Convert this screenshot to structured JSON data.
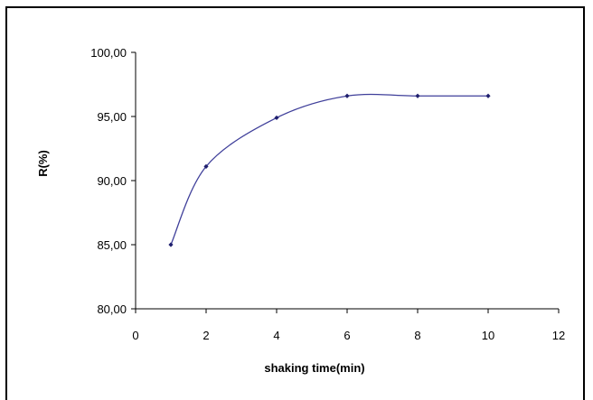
{
  "chart_data": {
    "type": "line",
    "title": "",
    "xlabel": "shaking time(min)",
    "ylabel": "R(%)",
    "xlim": [
      0,
      12
    ],
    "ylim": [
      80,
      100
    ],
    "x_ticks": [
      0,
      2,
      4,
      6,
      8,
      10,
      12
    ],
    "x_tick_labels": [
      "0",
      "2",
      "4",
      "6",
      "8",
      "10",
      "12"
    ],
    "y_ticks": [
      80,
      85,
      90,
      95,
      100
    ],
    "y_tick_labels": [
      "80,00",
      "85,00",
      "90,00",
      "95,00",
      "100,00"
    ],
    "smooth": true,
    "grid": false,
    "legend": "none",
    "series": [
      {
        "color": "#3f3f9a",
        "marker": "diamond",
        "x": [
          1,
          2,
          4,
          6,
          8,
          10
        ],
        "y": [
          85.0,
          91.1,
          94.9,
          96.6,
          96.6,
          96.6
        ]
      }
    ]
  }
}
